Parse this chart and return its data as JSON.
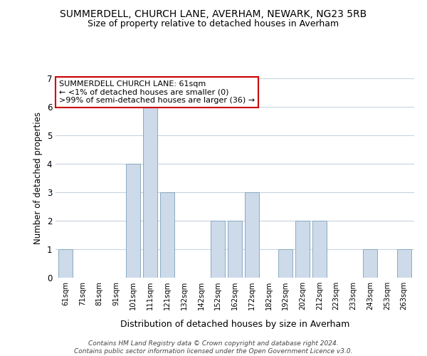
{
  "title": "SUMMERDELL, CHURCH LANE, AVERHAM, NEWARK, NG23 5RB",
  "subtitle": "Size of property relative to detached houses in Averham",
  "xlabel": "Distribution of detached houses by size in Averham",
  "ylabel": "Number of detached properties",
  "categories": [
    "61sqm",
    "71sqm",
    "81sqm",
    "91sqm",
    "101sqm",
    "111sqm",
    "121sqm",
    "132sqm",
    "142sqm",
    "152sqm",
    "162sqm",
    "172sqm",
    "182sqm",
    "192sqm",
    "202sqm",
    "212sqm",
    "223sqm",
    "233sqm",
    "243sqm",
    "253sqm",
    "263sqm"
  ],
  "values": [
    1,
    0,
    0,
    0,
    4,
    6,
    3,
    0,
    0,
    2,
    2,
    3,
    0,
    1,
    2,
    2,
    0,
    0,
    1,
    0,
    1
  ],
  "bar_color": "#cddaea",
  "bar_edge_color": "#8aaac0",
  "ylim": [
    0,
    7
  ],
  "yticks": [
    0,
    1,
    2,
    3,
    4,
    5,
    6,
    7
  ],
  "annotation_title": "SUMMERDELL CHURCH LANE: 61sqm",
  "annotation_line2": "← <1% of detached houses are smaller (0)",
  "annotation_line3": ">99% of semi-detached houses are larger (36) →",
  "annotation_box_color": "#ffffff",
  "annotation_box_edge_color": "#cc0000",
  "footer_line1": "Contains HM Land Registry data © Crown copyright and database right 2024.",
  "footer_line2": "Contains public sector information licensed under the Open Government Licence v3.0.",
  "bg_color": "#ffffff",
  "grid_color": "#c8d4e0"
}
